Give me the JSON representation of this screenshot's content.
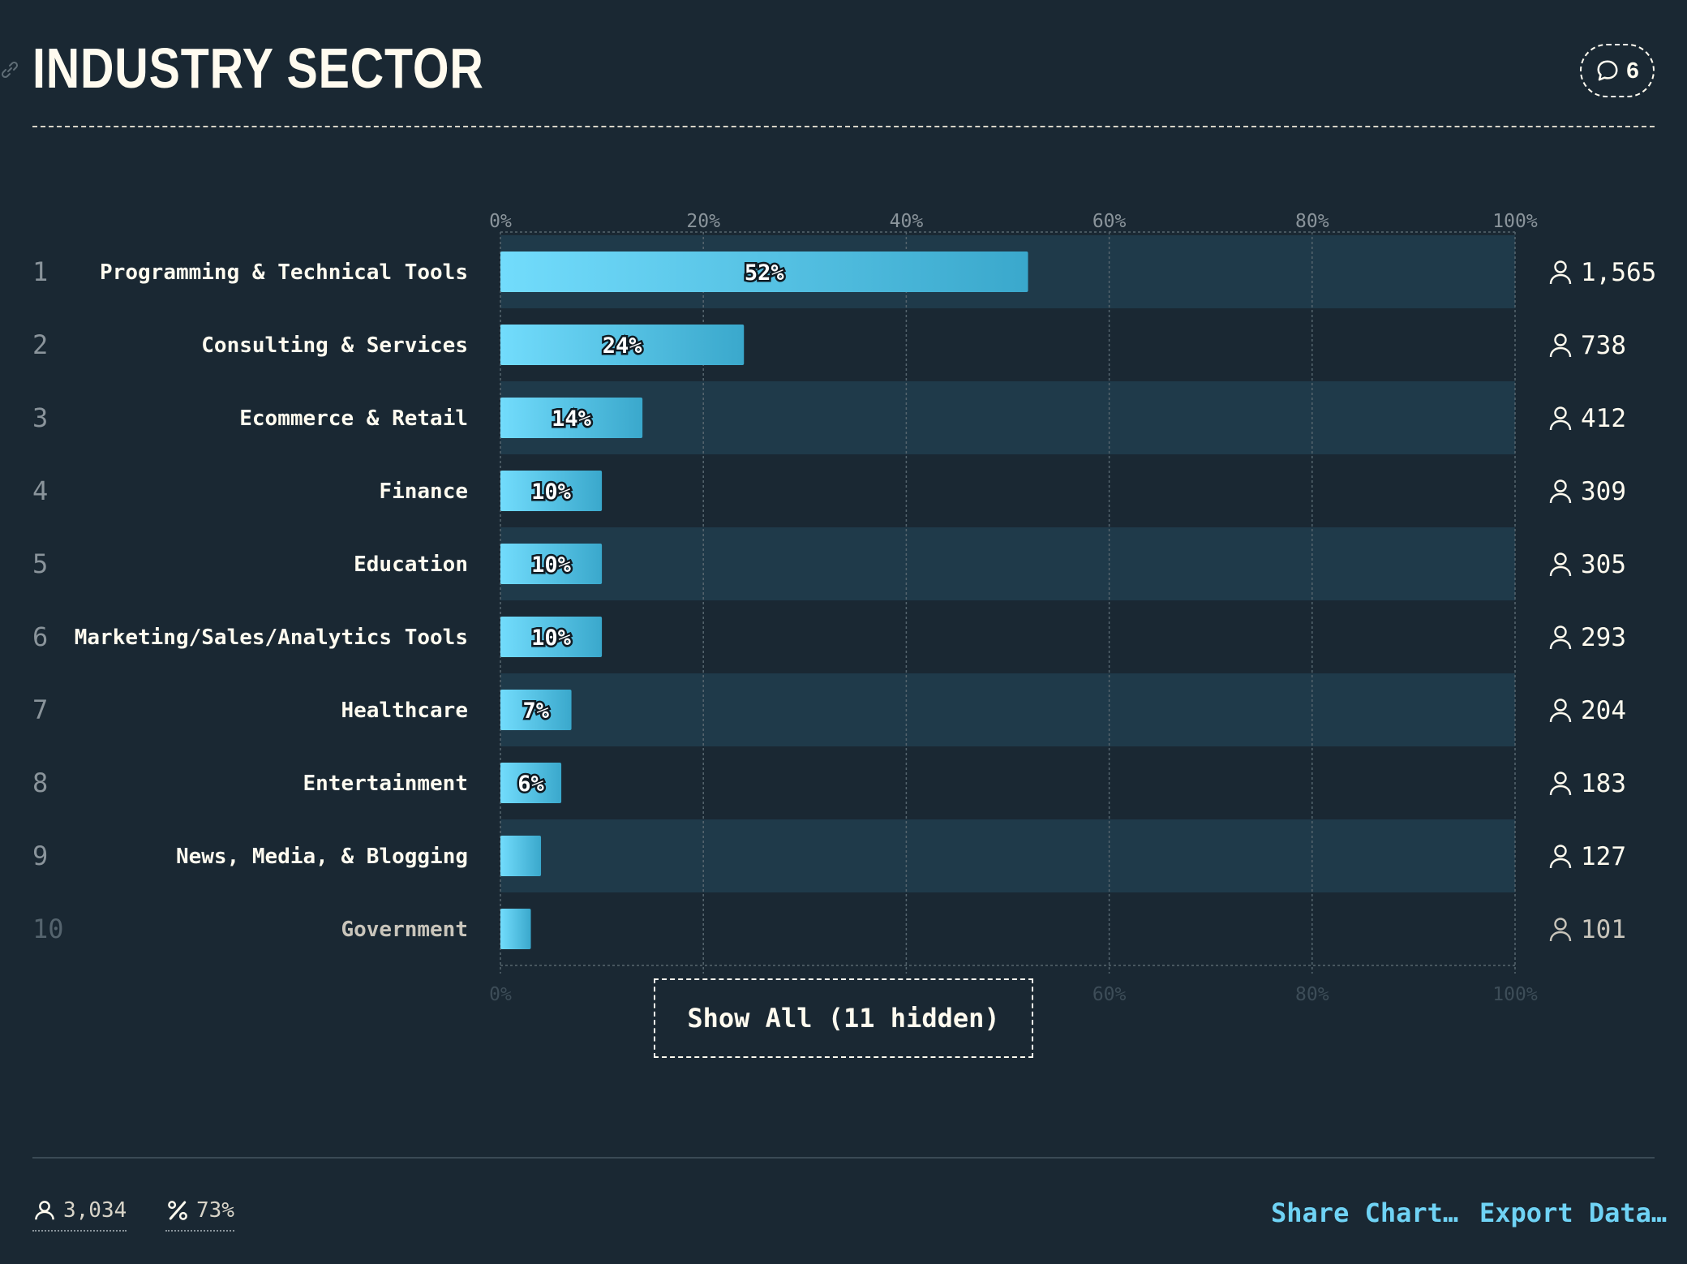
{
  "header": {
    "title": "INDUSTRY SECTOR",
    "comment_count": "6"
  },
  "chart_data": {
    "type": "bar",
    "orientation": "horizontal",
    "categories": [
      "Programming & Technical Tools",
      "Consulting & Services",
      "Ecommerce & Retail",
      "Finance",
      "Education",
      "Marketing/Sales/Analytics Tools",
      "Healthcare",
      "Entertainment",
      "News, Media, & Blogging",
      "Government"
    ],
    "ranks": [
      "1",
      "2",
      "3",
      "4",
      "5",
      "6",
      "7",
      "8",
      "9",
      "10"
    ],
    "values": [
      52,
      24,
      14,
      10,
      10,
      10,
      7,
      6,
      4,
      3
    ],
    "value_labels": [
      "52%",
      "24%",
      "14%",
      "10%",
      "10%",
      "10%",
      "7%",
      "6%",
      "",
      ""
    ],
    "counts": [
      "1,565",
      "738",
      "412",
      "309",
      "305",
      "293",
      "204",
      "183",
      "127",
      "101"
    ],
    "x_ticks": [
      "0%",
      "20%",
      "40%",
      "60%",
      "80%",
      "100%"
    ],
    "xlim": [
      0,
      100
    ],
    "grid": true,
    "colors": {
      "bar_start": "#72dcfc",
      "bar_end": "#3aa8cc",
      "stripe": "#1f3a4a",
      "background": "#1a2833"
    }
  },
  "show_all_label": "Show All (11 hidden)",
  "footer": {
    "respondents": "3,034",
    "percent": "73%",
    "share_label": "Share Chart…",
    "export_label": "Export Data…"
  }
}
